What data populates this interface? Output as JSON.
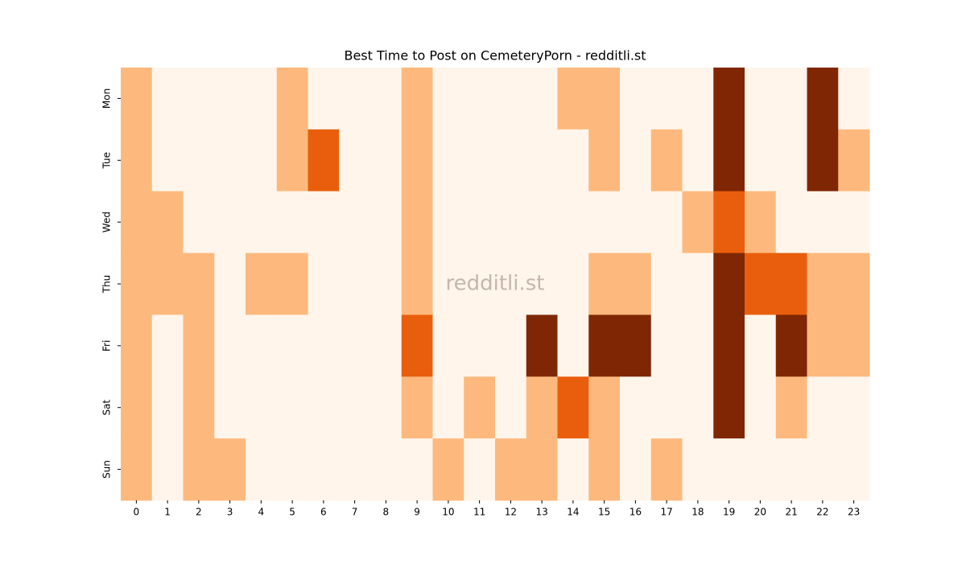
{
  "chart_data": {
    "type": "heatmap",
    "title": "Best Time to Post on CemeteryPorn - redditli.st",
    "annotation": "redditli.st",
    "x": [
      0,
      1,
      2,
      3,
      4,
      5,
      6,
      7,
      8,
      9,
      10,
      11,
      12,
      13,
      14,
      15,
      16,
      17,
      18,
      19,
      20,
      21,
      22,
      23
    ],
    "y": [
      "Mon",
      "Tue",
      "Wed",
      "Thu",
      "Fri",
      "Sat",
      "Sun"
    ],
    "colors": [
      "#fff5eb",
      "#fdb97d",
      "#e95e0d",
      "#7f2704"
    ],
    "values": [
      [
        1,
        0,
        0,
        0,
        0,
        1,
        0,
        0,
        0,
        1,
        0,
        0,
        0,
        0,
        1,
        1,
        0,
        0,
        0,
        3,
        0,
        0,
        3,
        0
      ],
      [
        1,
        0,
        0,
        0,
        0,
        1,
        2,
        0,
        0,
        1,
        0,
        0,
        0,
        0,
        0,
        1,
        0,
        1,
        0,
        3,
        0,
        0,
        3,
        1
      ],
      [
        1,
        1,
        0,
        0,
        0,
        0,
        0,
        0,
        0,
        1,
        0,
        0,
        0,
        0,
        0,
        0,
        0,
        0,
        1,
        2,
        1,
        0,
        0,
        0
      ],
      [
        1,
        1,
        1,
        0,
        1,
        1,
        0,
        0,
        0,
        1,
        0,
        0,
        0,
        0,
        0,
        1,
        1,
        0,
        0,
        3,
        2,
        2,
        1,
        1
      ],
      [
        1,
        0,
        1,
        0,
        0,
        0,
        0,
        0,
        0,
        2,
        0,
        0,
        0,
        3,
        0,
        3,
        3,
        0,
        0,
        3,
        0,
        3,
        1,
        1
      ],
      [
        1,
        0,
        1,
        0,
        0,
        0,
        0,
        0,
        0,
        1,
        0,
        1,
        0,
        1,
        2,
        1,
        0,
        0,
        0,
        3,
        0,
        1,
        0,
        0
      ],
      [
        1,
        0,
        1,
        1,
        0,
        0,
        0,
        0,
        0,
        0,
        1,
        0,
        1,
        1,
        0,
        1,
        0,
        1,
        0,
        0,
        0,
        0,
        0,
        0
      ]
    ]
  }
}
